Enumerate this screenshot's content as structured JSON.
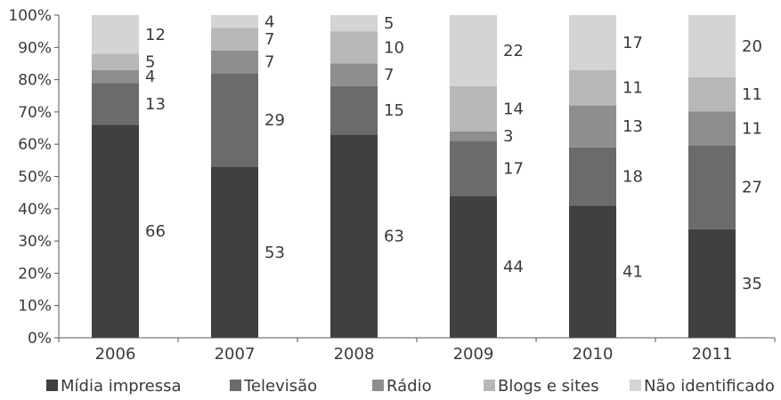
{
  "colors": {
    "axis": "#555555",
    "text": "#3a3a3a",
    "series": [
      "#404040",
      "#6b6b6b",
      "#8e8e8e",
      "#b8b8b9",
      "#d4d4d5"
    ]
  },
  "chart_data": {
    "type": "bar",
    "stacked": true,
    "normalized": true,
    "categories": [
      "2006",
      "2007",
      "2008",
      "2009",
      "2010",
      "2011"
    ],
    "series": [
      {
        "name": "Mídia impressa",
        "values": [
          66,
          53,
          63,
          44,
          41,
          35
        ]
      },
      {
        "name": "Televisão",
        "values": [
          13,
          29,
          15,
          17,
          18,
          27
        ]
      },
      {
        "name": "Rádio",
        "values": [
          4,
          7,
          7,
          3,
          13,
          11
        ]
      },
      {
        "name": "Blogs e sites",
        "values": [
          5,
          7,
          10,
          14,
          11,
          11
        ]
      },
      {
        "name": "Não identificado",
        "values": [
          12,
          4,
          5,
          22,
          17,
          20
        ]
      }
    ],
    "yticks": [
      "0%",
      "10%",
      "20%",
      "30%",
      "40%",
      "50%",
      "60%",
      "70%",
      "80%",
      "90%",
      "100%"
    ],
    "ylim": [
      0,
      100
    ],
    "grid": false,
    "legend_position": "bottom"
  }
}
